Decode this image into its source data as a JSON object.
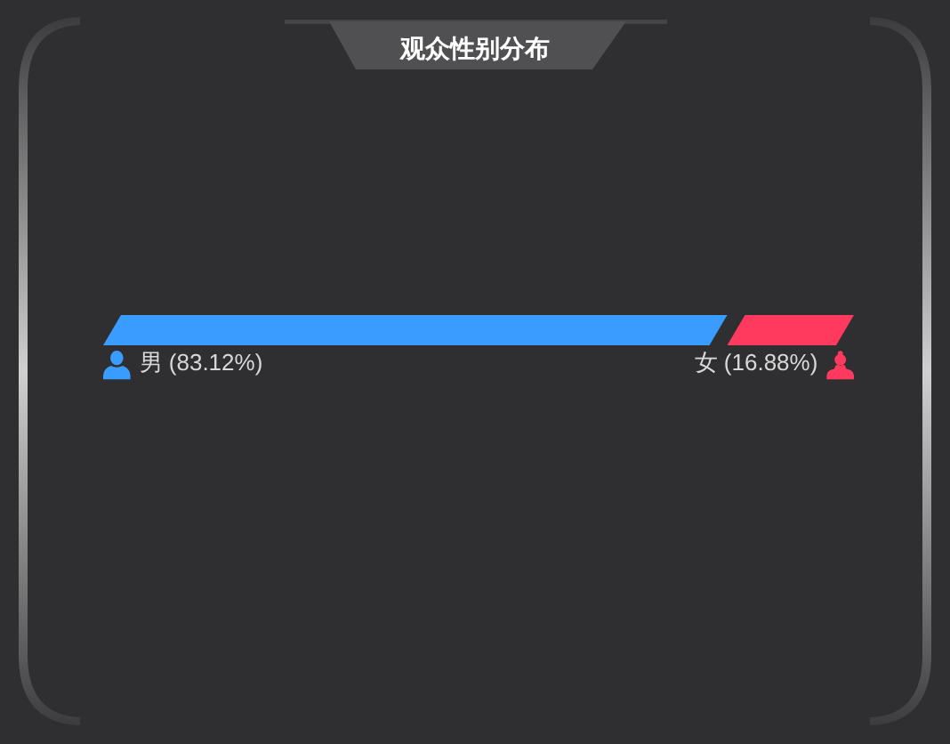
{
  "chart_data": {
    "type": "bar",
    "title": "观众性别分布",
    "orientation": "horizontal",
    "stacked": true,
    "categories": [
      null
    ],
    "series": [
      {
        "name": "男",
        "color": "#3a9cff",
        "values": [
          83.12
        ],
        "value_labels": [
          "(83.12%)"
        ]
      },
      {
        "name": "女",
        "color": "#ff3a5e",
        "values": [
          16.88
        ],
        "value_labels": [
          "(16.88%)"
        ]
      }
    ]
  }
}
